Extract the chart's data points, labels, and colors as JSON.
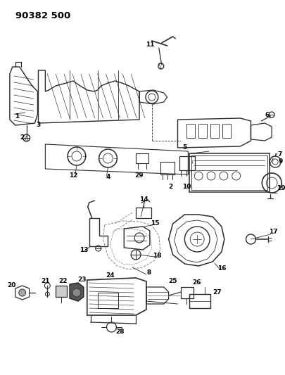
{
  "title": "90382 500",
  "bg_color": "#ffffff",
  "line_color": "#2a2a2a",
  "fig_width": 4.06,
  "fig_height": 5.33,
  "dpi": 100,
  "label_fontsize": 6.5,
  "title_fontsize": 9.5
}
